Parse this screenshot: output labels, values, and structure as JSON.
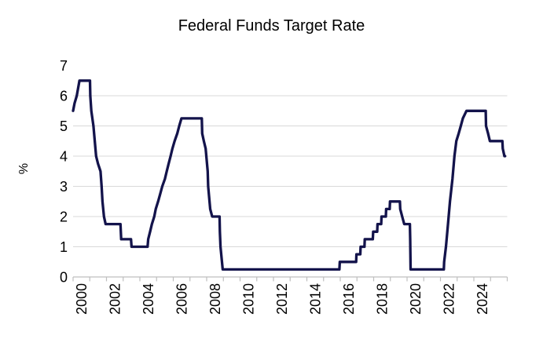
{
  "chart_data": {
    "type": "line",
    "title": "Federal Funds Target Rate",
    "xlabel": "",
    "ylabel": "%",
    "ylim": [
      0,
      7
    ],
    "xlim": [
      2000,
      2026
    ],
    "yticks": [
      0,
      1,
      2,
      3,
      4,
      5,
      6,
      7
    ],
    "xticks_every_year": true,
    "xtick_labels": [
      "2000",
      "2002",
      "2004",
      "2006",
      "2008",
      "2010",
      "2012",
      "2014",
      "2016",
      "2018",
      "2020",
      "2022",
      "2024"
    ],
    "grid": "horizontal-only",
    "legend": "none",
    "line_color": "#13134B",
    "grid_color": "#D9D9D9",
    "axis_color": "#BFBFBF",
    "label_color": "#000000",
    "series": [
      {
        "name": "Federal Funds Target Rate",
        "units": "percent",
        "points": [
          [
            2000.0,
            5.5
          ],
          [
            2000.09,
            5.75
          ],
          [
            2000.22,
            6.0
          ],
          [
            2000.38,
            6.5
          ],
          [
            2001.01,
            6.5
          ],
          [
            2001.03,
            6.0
          ],
          [
            2001.09,
            5.5
          ],
          [
            2001.22,
            5.0
          ],
          [
            2001.3,
            4.5
          ],
          [
            2001.38,
            4.0
          ],
          [
            2001.49,
            3.75
          ],
          [
            2001.64,
            3.5
          ],
          [
            2001.71,
            3.0
          ],
          [
            2001.76,
            2.5
          ],
          [
            2001.85,
            2.0
          ],
          [
            2001.95,
            1.75
          ],
          [
            2002.84,
            1.75
          ],
          [
            2002.88,
            1.25
          ],
          [
            2003.47,
            1.25
          ],
          [
            2003.5,
            1.0
          ],
          [
            2004.46,
            1.0
          ],
          [
            2004.5,
            1.25
          ],
          [
            2004.61,
            1.5
          ],
          [
            2004.72,
            1.75
          ],
          [
            2004.86,
            2.0
          ],
          [
            2004.95,
            2.25
          ],
          [
            2005.09,
            2.5
          ],
          [
            2005.22,
            2.75
          ],
          [
            2005.34,
            3.0
          ],
          [
            2005.5,
            3.25
          ],
          [
            2005.61,
            3.5
          ],
          [
            2005.72,
            3.75
          ],
          [
            2005.84,
            4.0
          ],
          [
            2005.95,
            4.25
          ],
          [
            2006.08,
            4.5
          ],
          [
            2006.24,
            4.75
          ],
          [
            2006.36,
            5.0
          ],
          [
            2006.49,
            5.25
          ],
          [
            2007.71,
            5.25
          ],
          [
            2007.73,
            4.75
          ],
          [
            2007.83,
            4.5
          ],
          [
            2007.94,
            4.25
          ],
          [
            2008.06,
            3.5
          ],
          [
            2008.09,
            3.0
          ],
          [
            2008.21,
            2.25
          ],
          [
            2008.33,
            2.0
          ],
          [
            2008.77,
            2.0
          ],
          [
            2008.79,
            1.5
          ],
          [
            2008.83,
            1.0
          ],
          [
            2008.96,
            0.25
          ],
          [
            2015.95,
            0.25
          ],
          [
            2015.97,
            0.5
          ],
          [
            2016.95,
            0.5
          ],
          [
            2016.97,
            0.75
          ],
          [
            2017.2,
            0.75
          ],
          [
            2017.22,
            1.0
          ],
          [
            2017.45,
            1.0
          ],
          [
            2017.47,
            1.25
          ],
          [
            2017.95,
            1.25
          ],
          [
            2017.97,
            1.5
          ],
          [
            2018.21,
            1.5
          ],
          [
            2018.23,
            1.75
          ],
          [
            2018.45,
            1.75
          ],
          [
            2018.47,
            2.0
          ],
          [
            2018.73,
            2.0
          ],
          [
            2018.75,
            2.25
          ],
          [
            2018.96,
            2.25
          ],
          [
            2018.98,
            2.5
          ],
          [
            2019.57,
            2.5
          ],
          [
            2019.59,
            2.25
          ],
          [
            2019.71,
            2.0
          ],
          [
            2019.83,
            1.75
          ],
          [
            2020.17,
            1.75
          ],
          [
            2020.19,
            1.25
          ],
          [
            2020.21,
            0.25
          ],
          [
            2022.2,
            0.25
          ],
          [
            2022.22,
            0.5
          ],
          [
            2022.33,
            1.0
          ],
          [
            2022.45,
            1.75
          ],
          [
            2022.57,
            2.5
          ],
          [
            2022.72,
            3.25
          ],
          [
            2022.84,
            4.0
          ],
          [
            2022.95,
            4.5
          ],
          [
            2023.09,
            4.75
          ],
          [
            2023.22,
            5.0
          ],
          [
            2023.34,
            5.25
          ],
          [
            2023.56,
            5.5
          ],
          [
            2024.71,
            5.5
          ],
          [
            2024.73,
            5.0
          ],
          [
            2024.85,
            4.75
          ],
          [
            2024.96,
            4.5
          ],
          [
            2025.71,
            4.5
          ],
          [
            2025.73,
            4.25
          ],
          [
            2025.83,
            4.0
          ],
          [
            2025.87,
            4.0
          ]
        ]
      }
    ]
  }
}
